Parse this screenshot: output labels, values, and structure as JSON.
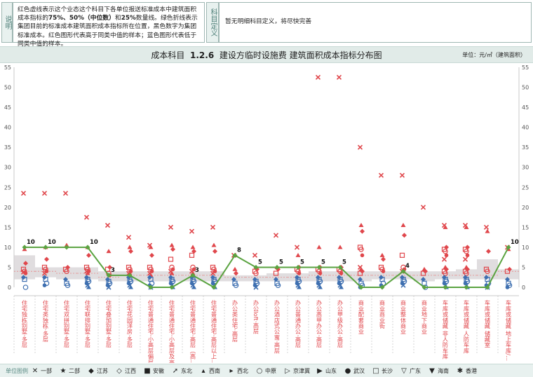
{
  "header": {
    "note_label": "说明",
    "note_text_1": "红色虚线表示这个业态这个科目下各单位报送标准成本中建筑面积成本指标的",
    "note_text_bold": "75%、50%（中位数）",
    "note_text_2": "和",
    "note_text_bold2": "25%",
    "note_text_3": "数量线。绿色折线表示集团目前的标准成本建筑面积成本指标所在位置，黑色数字为集团标准成本。红色图形代表高于同类中值的样本；蓝色图形代表低于同类中值的样本。",
    "subject_label": "科目定义",
    "subject_text": "暂无明细科目定义，将尽快完善"
  },
  "title": {
    "prefix": "成本科目",
    "code": "1.2.6",
    "name": "建设方临时设施费 建筑面积成本指标分布图",
    "unit": "单位：元/㎡（建筑面积）"
  },
  "chart_data": {
    "type": "scatter",
    "ylim": [
      0,
      55
    ],
    "yticks": [
      0,
      5,
      10,
      15,
      20,
      25,
      30,
      35,
      40,
      45,
      50,
      55
    ],
    "categories": [
      "住宅独栋别墅·多层",
      "住宅类独栋·多层",
      "住宅双拼别墅·多层",
      "住宅联排别墅·多层",
      "住宅叠加别墅·多层",
      "住宅花园洋房·多层",
      "住宅普通住宅·小高层偏层",
      "住宅普通住宅·小高层及高层",
      "住宅普通住宅·高层（高...",
      "住宅普通住宅·高层以上...",
      "办公类住宅·高层",
      "办公loft·高层",
      "办公酒店式公寓·高层",
      "办公普通办公·高层",
      "办公高甲办公·高层",
      "办公甲级办公·高层",
      "商业配套商业",
      "商业商业街",
      "商业整体商业",
      "商业地下商业",
      "车库或储藏 非人防车库",
      "车库或储藏 人防车库",
      "车库或储藏 储藏室",
      "车库或储藏 地上车库/..."
    ],
    "group_standard": [
      10,
      10,
      10,
      10,
      3,
      3,
      0,
      0,
      3,
      0,
      8,
      5,
      5,
      5,
      5,
      5,
      0,
      0,
      4,
      0,
      0,
      0,
      0,
      10
    ],
    "standard_labels": [
      "10",
      "10",
      "",
      "10",
      "3",
      "",
      "",
      "",
      "3",
      "",
      "8",
      "5",
      "5",
      "5",
      "5",
      "5",
      "",
      "",
      "4",
      "",
      "",
      "",
      "",
      "10"
    ],
    "percentiles": {
      "p25": [
        2,
        2.5,
        2,
        2,
        1.5,
        1.5,
        1.5,
        1.5,
        1.5,
        1.5,
        1.5,
        1.5,
        1.5,
        1.5,
        1.5,
        1.5,
        1.5,
        2,
        2,
        1.5,
        2,
        2,
        2,
        2
      ],
      "p50": [
        4,
        4,
        3.5,
        3.5,
        2.5,
        3,
        3,
        3,
        3,
        3,
        2.5,
        2.5,
        2.5,
        2.5,
        3,
        3,
        3,
        3,
        3,
        3,
        3,
        3,
        3,
        4
      ],
      "p75": [
        8,
        5,
        5,
        5,
        4,
        4,
        4,
        4,
        4,
        4,
        3,
        3,
        3.5,
        3.5,
        4,
        4,
        4,
        4,
        4,
        4,
        4,
        4.5,
        7,
        4.5
      ]
    },
    "points_high": [
      [
        23.5,
        9.5,
        6,
        4.5,
        4,
        3.5,
        3.8
      ],
      [
        23.5,
        10,
        7,
        5,
        4.5,
        4,
        3.5
      ],
      [
        23.5,
        10.5,
        5,
        4.5,
        4
      ],
      [
        17.5,
        10,
        8,
        5,
        4.5,
        4,
        4,
        3.5
      ],
      [
        15.5,
        9,
        5,
        4.5,
        3.5,
        3
      ],
      [
        12.5,
        10,
        9,
        5,
        4.5,
        4,
        3.5,
        3.5
      ],
      [
        10.5,
        10,
        8,
        5,
        4.5,
        4,
        3.5,
        3
      ],
      [
        15,
        10.5,
        9.5,
        7,
        5,
        4.5,
        4,
        3.5
      ],
      [
        14,
        10,
        9,
        8,
        5,
        4.5,
        4,
        3.5
      ],
      [
        15,
        10.5,
        9,
        5,
        4.5,
        4,
        3.5
      ],
      [
        8,
        4.5,
        3.5
      ],
      [
        8,
        5,
        4.5,
        4,
        3.5
      ],
      [
        13,
        5,
        4.5,
        3.5
      ],
      [
        10,
        8,
        5,
        4.5,
        4,
        3.5
      ],
      [
        52.5,
        10,
        5,
        4.5,
        4,
        3.5
      ],
      [
        52.5,
        10,
        5,
        4.5,
        4,
        3.5
      ],
      [
        35,
        15.5,
        14,
        10,
        9.5,
        8,
        5,
        4.5,
        4,
        3.5
      ],
      [
        28,
        8,
        7,
        5,
        4.5,
        4
      ],
      [
        28,
        15.5,
        13,
        8,
        5,
        4.5,
        4
      ],
      [
        20,
        4.5,
        4,
        3.5
      ],
      [
        15.5,
        15,
        10,
        9.5,
        9,
        8,
        7,
        5,
        4.5,
        4,
        3.5
      ],
      [
        15.5,
        15,
        10,
        9.5,
        9,
        8,
        7,
        5,
        4.5,
        4,
        3.5
      ],
      [
        15,
        14,
        9,
        4.5,
        4
      ],
      [
        10,
        9.5,
        4.5,
        4
      ]
    ],
    "points_low": [
      [
        2.5,
        2,
        0
      ],
      [
        2.5,
        2,
        1,
        0.5
      ],
      [
        2,
        1,
        0.5
      ],
      [
        2.5,
        2,
        1.5,
        1,
        0.5,
        0
      ],
      [
        2,
        1.5,
        1,
        0.5,
        0
      ],
      [
        2.5,
        2,
        1.5,
        1,
        0.5,
        0
      ],
      [
        2.5,
        2,
        1,
        0.5,
        0
      ],
      [
        2.5,
        2,
        1.5,
        1,
        0.5,
        0
      ],
      [
        2.5,
        2,
        1.5,
        1,
        0.5,
        0
      ],
      [
        2.5,
        2,
        1.5,
        1,
        0.5,
        0
      ],
      [
        2,
        1,
        0.5
      ],
      [
        2,
        1.5,
        1,
        0.5,
        0
      ],
      [
        2,
        1,
        0.5
      ],
      [
        2.5,
        2,
        1.5,
        1,
        0.5,
        0
      ],
      [
        2.5,
        2,
        1.5,
        1,
        0.5,
        0
      ],
      [
        2.5,
        2,
        1.5,
        1,
        0.5,
        0
      ],
      [
        2,
        1,
        0.5,
        0
      ],
      [
        2.5,
        2,
        1,
        0.5
      ],
      [
        2.5,
        2,
        1.5,
        1,
        0.5
      ],
      [
        2,
        1,
        0
      ],
      [
        2.5,
        2,
        1.5,
        1,
        0.5,
        0
      ],
      [
        2.5,
        2,
        1.5,
        1,
        0.5,
        0
      ],
      [
        2.5,
        2,
        1,
        0.5,
        0
      ],
      [
        2,
        1,
        0.5,
        0
      ]
    ],
    "colors": {
      "high": "#e0474c",
      "low": "#3e6fb0",
      "line": "#5aa340",
      "band": "#d3cfd1",
      "median_line": "#e58a8a"
    }
  },
  "legend": {
    "title": "单位图例",
    "items": [
      {
        "sym": "✕",
        "label": "一部"
      },
      {
        "sym": "★",
        "label": "二部"
      },
      {
        "sym": "◆",
        "label": "江苏"
      },
      {
        "sym": "◇",
        "label": "江西"
      },
      {
        "sym": "■",
        "label": "安徽"
      },
      {
        "sym": "➚",
        "label": "东北"
      },
      {
        "sym": "▴",
        "label": "西南"
      },
      {
        "sym": "▸",
        "label": "西北"
      },
      {
        "sym": "○",
        "label": "中原"
      },
      {
        "sym": "▷",
        "label": "京津冀"
      },
      {
        "sym": "▶",
        "label": "山东"
      },
      {
        "sym": "●",
        "label": "武汉"
      },
      {
        "sym": "□",
        "label": "长沙"
      },
      {
        "sym": "▽",
        "label": "广东"
      },
      {
        "sym": "▼",
        "label": "海南"
      },
      {
        "sym": "✱",
        "label": "香港"
      }
    ]
  }
}
